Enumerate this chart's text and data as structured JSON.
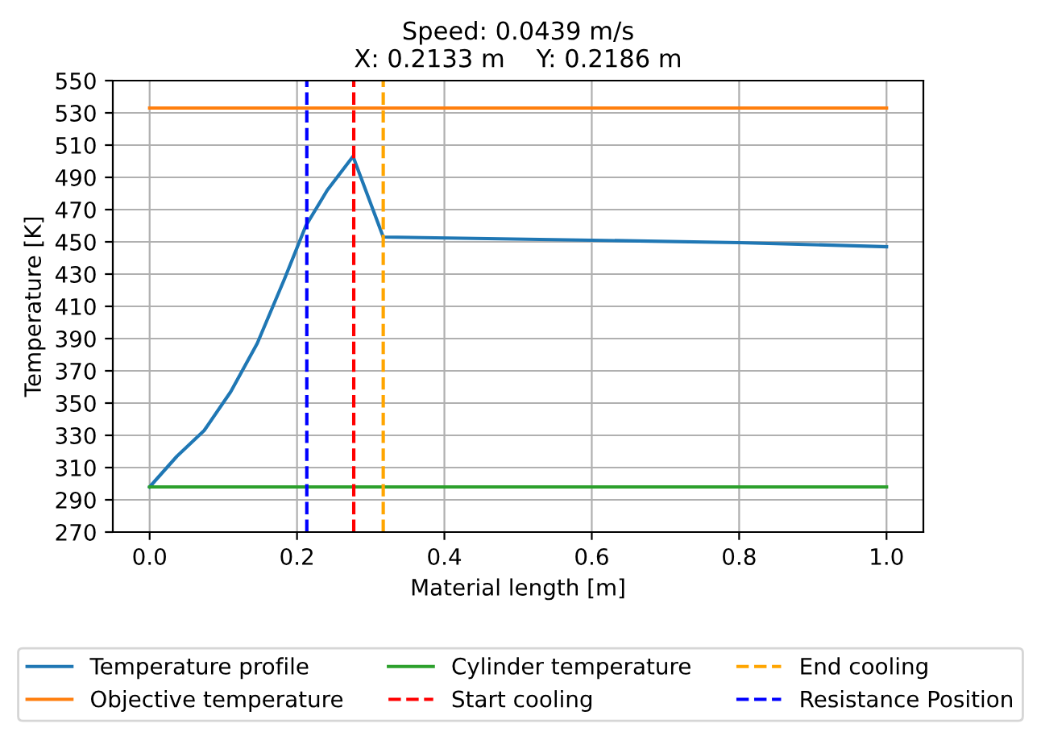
{
  "chart_data": {
    "type": "line",
    "title": "Speed: 0.0439 m/s\nX: 0.2133 m    Y: 0.2186 m",
    "xlabel": "Material length [m]",
    "ylabel": "Temperature [K]",
    "series": [
      {
        "name": "Temperature profile",
        "color": "#1f77b4",
        "x": [
          0,
          0.037,
          0.074,
          0.11,
          0.146,
          0.183,
          0.212,
          0.241,
          0.276,
          0.317,
          0.6,
          0.8,
          1.0
        ],
        "values": [
          298,
          317,
          333,
          357,
          387,
          427,
          460,
          482,
          503,
          453,
          451,
          449.5,
          447
        ]
      },
      {
        "name": "Objective temperature",
        "color": "#ff7f0e",
        "x": [
          0,
          1.0
        ],
        "values": [
          533,
          533
        ]
      },
      {
        "name": "Cylinder temperature",
        "color": "#2ca02c",
        "x": [
          0,
          1.0
        ],
        "values": [
          298,
          298
        ]
      }
    ],
    "ref_lines": [
      {
        "axis": "x",
        "value": 0.277,
        "label": "Start cooling",
        "color": "#ff0000",
        "line_style": "dashed"
      },
      {
        "axis": "x",
        "value": 0.317,
        "label": "End cooling",
        "color": "#ffa500",
        "line_style": "dashed"
      },
      {
        "axis": "x",
        "value": 0.2133,
        "label": "Resistance Position",
        "color": "#0000ff",
        "line_style": "dashed"
      }
    ],
    "xlim": [
      -0.05,
      1.05
    ],
    "xticks": [
      {
        "value": 0,
        "label": "0.0"
      },
      0.2,
      0.4,
      0.6,
      0.8,
      {
        "value": 1,
        "label": "1.0"
      }
    ],
    "ylim": [
      270,
      550
    ],
    "yticks": [
      270,
      290,
      310,
      330,
      350,
      370,
      390,
      410,
      430,
      450,
      470,
      490,
      510,
      530,
      550
    ],
    "grid": true,
    "legend": "bottom",
    "line_style": "solid",
    "marker": "none"
  }
}
